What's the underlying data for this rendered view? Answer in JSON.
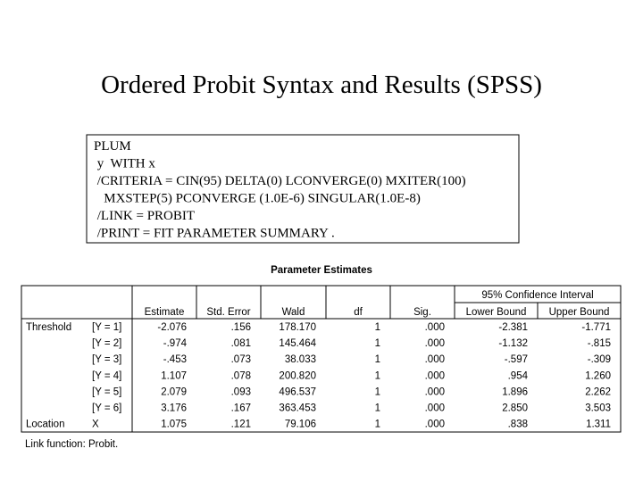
{
  "title": "Ordered Probit Syntax and Results (SPSS)",
  "syntax": {
    "lines": [
      "PLUM",
      " y  WITH x",
      " /CRITERIA = CIN(95) DELTA(0) LCONVERGE(0) MXITER(100)",
      "   MXSTEP(5) PCONVERGE (1.0E-6) SINGULAR(1.0E-8)",
      " /LINK = PROBIT",
      " /PRINT = FIT PARAMETER SUMMARY ."
    ]
  },
  "table": {
    "title": "Parameter Estimates",
    "ci_header": "95% Confidence Interval",
    "columns": [
      "Estimate",
      "Std. Error",
      "Wald",
      "df",
      "Sig.",
      "Lower Bound",
      "Upper Bound"
    ],
    "rows": [
      {
        "term": "Threshold",
        "level": "[Y = 1]",
        "cells": [
          "-2.076",
          ".156",
          "178.170",
          "1",
          ".000",
          "-2.381",
          "-1.771"
        ]
      },
      {
        "level": "[Y = 2]",
        "cells": [
          "-.974",
          ".081",
          "145.464",
          "1",
          ".000",
          "-1.132",
          "-.815"
        ]
      },
      {
        "level": "[Y = 3]",
        "cells": [
          "-.453",
          ".073",
          "38.033",
          "1",
          ".000",
          "-.597",
          "-.309"
        ]
      },
      {
        "level": "[Y = 4]",
        "cells": [
          "1.107",
          ".078",
          "200.820",
          "1",
          ".000",
          ".954",
          "1.260"
        ]
      },
      {
        "level": "[Y = 5]",
        "cells": [
          "2.079",
          ".093",
          "496.537",
          "1",
          ".000",
          "1.896",
          "2.262"
        ]
      },
      {
        "level": "[Y = 6]",
        "cells": [
          "3.176",
          ".167",
          "363.453",
          "1",
          ".000",
          "2.850",
          "3.503"
        ]
      },
      {
        "term": "Location",
        "level": "X",
        "cells": [
          "1.075",
          ".121",
          "79.106",
          "1",
          ".000",
          ".838",
          "1.311"
        ]
      }
    ],
    "footnote": "Link function: Probit."
  }
}
